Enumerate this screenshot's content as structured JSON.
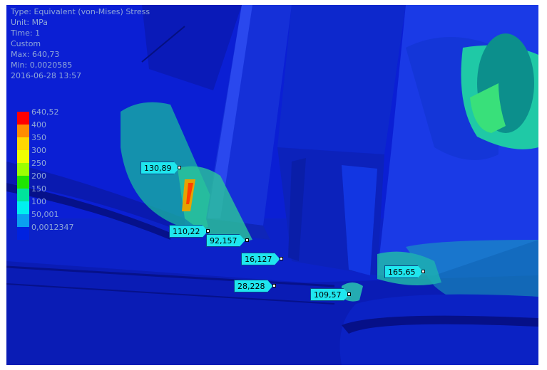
{
  "result_info": {
    "type_line": "Type: Equivalent (von-Mises) Stress",
    "unit_line": "Unit: MPa",
    "time_line": "Time: 1",
    "mode_line": "Custom",
    "max_line": "Max: 640,73",
    "min_line": "Min: 0,0020585",
    "date_line": "2016-06-28 13:57"
  },
  "legend": {
    "entries": [
      {
        "label": "640,52",
        "color": "#ff0000"
      },
      {
        "label": "400",
        "color": "#ff8c00"
      },
      {
        "label": "350",
        "color": "#ffd700"
      },
      {
        "label": "300",
        "color": "#f0ff00"
      },
      {
        "label": "250",
        "color": "#9cff00"
      },
      {
        "label": "200",
        "color": "#1fe400"
      },
      {
        "label": "150",
        "color": "#00e39c"
      },
      {
        "label": "100",
        "color": "#00f0f0"
      },
      {
        "label": "50,001",
        "color": "#0aa0f0"
      },
      {
        "label": "0,0012347",
        "color": "#0022e0"
      }
    ]
  },
  "probes": [
    {
      "value": "130,89"
    },
    {
      "value": "110,22"
    },
    {
      "value": "92,157"
    },
    {
      "value": "16,127"
    },
    {
      "value": "28,228"
    },
    {
      "value": "109,57"
    },
    {
      "value": "165,65"
    }
  ]
}
